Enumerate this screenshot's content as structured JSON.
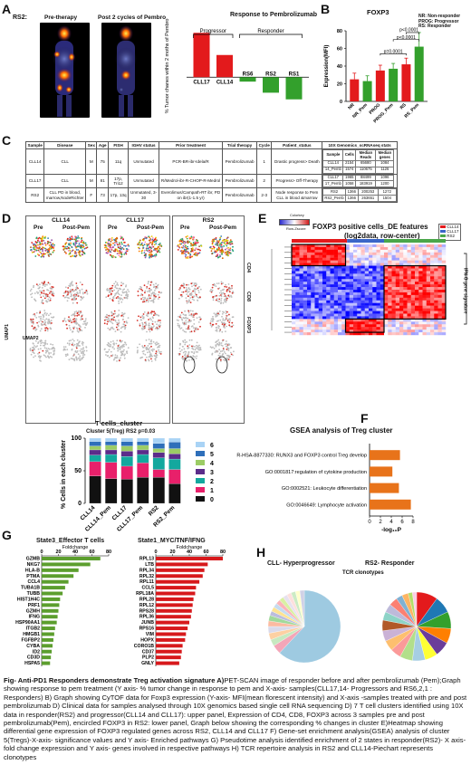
{
  "panel_labels": {
    "A": "A",
    "B": "B",
    "C": "C",
    "D": "D",
    "E": "E",
    "F": "F",
    "G": "G",
    "H": "H"
  },
  "panelA": {
    "patient": "RS2:",
    "pre": "Pre-therapy",
    "post": "Post 2 cycles of Pembro",
    "chart_title": "Response to Pembrolizumab",
    "progressor": "Progressor",
    "responder": "Responder",
    "ylabel": "% Tumor chanes within 2 moths of Pembro"
  },
  "panelB": {
    "title": "FOXP3",
    "ylabel": "Expression(MFI)",
    "legend": [
      "NR: Non-responder",
      "PROG: Progressor",
      "RS: Responder"
    ],
    "pval1": "p=0.0001",
    "pval2": "p<0.0001",
    "pval3": "p<0.0001"
  },
  "panelC": {
    "headers": [
      "Sample",
      "Disease",
      "Sex",
      "Age",
      "FISH",
      "IGHV status",
      "Prior treatment",
      "Trial therapy",
      "Cycle",
      "Patient_status",
      "10X Genomics_scRNAseq stats"
    ],
    "subheaders": [
      "Sample",
      "Cells",
      "Median Reads",
      "Median genes"
    ],
    "rows": [
      {
        "sample": "CLL14",
        "disease": "CLL",
        "sex": "M",
        "age": "75",
        "fish": "11q",
        "ighv": "Unmutated",
        "prior": "PCR-BR-ibr-Idela/R",
        "trial": "Pembrolizumab",
        "cycle": "1",
        "status": "Drastic progress> Death",
        "stats": [
          [
            "CLL14",
            "2154",
            "65680",
            "1084"
          ],
          [
            "14_Pemb",
            "1574",
            "110675",
            "1126"
          ]
        ]
      },
      {
        "sample": "CLL17",
        "disease": "CLL",
        "sex": "M",
        "age": "81",
        "fish": "17p, Tri12",
        "ighv": "Unmutated",
        "prior": "R/Medrol-ibr-R-CHOP-R-Medrol",
        "trial": "Pembrolizumab",
        "cycle": "2",
        "status": "Progress> Off-Therapy",
        "stats": [
          [
            "CLL17",
            "1965",
            "88499",
            "1096"
          ],
          [
            "17_Pemb",
            "1058",
            "183919",
            "1200"
          ]
        ]
      },
      {
        "sample": "RS2",
        "disease": "CLL PD in blood, marrow,NodeRichter",
        "sex": "F",
        "age": "73",
        "fish": "17p, 13q",
        "ighv": "Unmutated, 3-30",
        "prior": "Everolimus/Campath-RT ibr, PD on ibr(1-1.5 yr)",
        "trial": "Pembrolizumab",
        "cycle": "2-3",
        "status": "Node response to Pem CLL in blood &marrow",
        "stats": [
          [
            "RS2",
            "1366",
            "200253",
            "1272"
          ],
          [
            "RS2_Pemb",
            "1366",
            "263651",
            "1504"
          ]
        ]
      }
    ]
  },
  "panelD": {
    "cols": [
      {
        "title": "CLL14",
        "pre": "Pre",
        "post": "Post-Pem"
      },
      {
        "title": "CLL17",
        "pre": "Pre",
        "post": "Post-Pem"
      },
      {
        "title": "RS2",
        "pre": "Pre",
        "post": "Post-Pem"
      }
    ],
    "row_labels": [
      "CD4",
      "CD8",
      "FOXP3"
    ],
    "umap1": "UMAP1",
    "umap2": "UMAP2"
  },
  "panelE": {
    "title": "FOXP3 positive cells_DE features",
    "subtitle": "(log2data, row-center)",
    "colorkey": "Colorkey",
    "zscore": "Row-Zscore",
    "legend": [
      "CLL14",
      "CLL17",
      "RS2"
    ],
    "sidelabel": "IFN-G gene signature"
  },
  "panelTcells": {
    "title": "T cells_cluster",
    "subtitle": "Cluster 5(Treg) RS2 p=0.03",
    "ylabel": "% Cells in each cluster"
  },
  "panelF": {
    "title": "GSEA analysis of Treg cluster",
    "xlabel": "-log₁₀P"
  },
  "panelG": {
    "left_title": "State3_Effector T cells",
    "right_title": "State1_MYC/TNF/IFNG",
    "fc_label": "Foldchange"
  },
  "panelH": {
    "left_title": "CLL- Hyperprogressor",
    "right_title": "RS2- Responder",
    "tcr": "TCR clonotypes"
  },
  "caption": {
    "lead": "Fig- Anti-PD1 Responders demonstrate Treg activation signature A)",
    "body": "PET-SCAN image of responder before and after pembrolizumab (Pem);Graph showing response to pem treatment (Y axis- % tumor change in response to pem and X-axis- samples(CLL17,14- Progressors and RS6,2,1 : Responders) B) Graph showing CyTOF data for Foxp3 expression (Y-axis- MFI(mean florescent intensity) and X-axis -samples  treated with pre and post pembrolizumab D) Clinical data  for samples analysed through 10X genomics based single cell RNA sequencing D) 7 T cell clusters identified using 10X data in responder(RS2) and progressor(CLL14 and CLL17): upper panel, Expression of CD4, CD8, FOXP3 across 3 samples pre and post pembrolizumab(Pem), encircled FOXP3 in RS2: lower panel, Graph below showing the corresponding % changes in cluster  E)Heatmap showing differential gene expression of FOXP3 regulated genes across RS2, CLL14 and CLL17 F) Gene-set enrichment analysis(GSEA) analysis of cluster 5(Tregs)-X-axis- significance values and Y axis- Enriched pathways G) Pseudotime analysis identified enrichment of 2 states in responder(RS2)- X axis- fold change expression and Y axis- genes involved in respective pathways H) TCR repertoire analysis in RS2 and CLL14-Piechart represents clonotypes"
  },
  "chart_data": [
    {
      "type": "bar",
      "id": "A",
      "title": "Response to Pembrolizumab",
      "ylabel": "% Tumor chanes within 2 moths of Pembro",
      "categories": [
        "CLL17",
        "CLL14",
        "RS6",
        "RS2",
        "RS1"
      ],
      "values": [
        200,
        100,
        -20,
        -70,
        -100
      ],
      "colors": [
        "#e31a1c",
        "#e31a1c",
        "#33a02c",
        "#33a02c",
        "#33a02c"
      ],
      "ylim": [
        -150,
        250
      ]
    },
    {
      "type": "bar",
      "id": "B",
      "title": "FOXP3",
      "ylabel": "Expression(MFI)",
      "categories": [
        "NR",
        "NR_Pem",
        "PROG",
        "PROG_Pem",
        "RS",
        "RS_Pem"
      ],
      "values": [
        25,
        23,
        35,
        37,
        42,
        62
      ],
      "errors": [
        7,
        6,
        6,
        6,
        7,
        16
      ],
      "colors": [
        "#e31a1c",
        "#33a02c",
        "#e31a1c",
        "#33a02c",
        "#e31a1c",
        "#33a02c"
      ],
      "ylim": [
        0,
        80
      ],
      "yticks": [
        0,
        20,
        40,
        60,
        80
      ]
    },
    {
      "type": "bar",
      "id": "Tcells",
      "title": "T cells_cluster",
      "subtitle": "Cluster 5(Treg) RS2 p=0.03",
      "ylabel": "% Cells in each cluster",
      "categories": [
        "CLL14",
        "CLL14_Pem",
        "CLL17",
        "CLL17_Pem",
        "RS2",
        "RS2_Pem"
      ],
      "stacked": true,
      "series": [
        {
          "name": "0",
          "color": "#111111",
          "values": [
            42,
            38,
            37,
            40,
            40,
            30
          ]
        },
        {
          "name": "1",
          "color": "#e8206a",
          "values": [
            22,
            25,
            20,
            22,
            12,
            22
          ]
        },
        {
          "name": "2",
          "color": "#13a89e",
          "values": [
            10,
            12,
            15,
            13,
            18,
            16
          ]
        },
        {
          "name": "3",
          "color": "#5b2c8a",
          "values": [
            8,
            7,
            8,
            7,
            8,
            8
          ]
        },
        {
          "name": "4",
          "color": "#9ccc65",
          "values": [
            6,
            7,
            8,
            7,
            6,
            8
          ]
        },
        {
          "name": "5",
          "color": "#2e6fba",
          "values": [
            7,
            6,
            7,
            6,
            8,
            10
          ]
        },
        {
          "name": "6",
          "color": "#a9d3f5",
          "values": [
            5,
            5,
            5,
            5,
            8,
            6
          ]
        }
      ],
      "ylim": [
        0,
        100
      ],
      "yticks": [
        0,
        50,
        100
      ]
    },
    {
      "type": "bar",
      "id": "F",
      "orientation": "horizontal",
      "title": "GSEA analysis of Treg cluster",
      "xlabel": "-log₁₀P",
      "categories": [
        "R-HSA-8877330: RUNX3 and FOXP3 control Treg develop",
        "GO:0001817:regulation of cytokine production",
        "GO:0002521: Leukocyte differentiation",
        "GO:0046649: Lymphocyte activation"
      ],
      "values": [
        5.6,
        4.2,
        5.4,
        7.6
      ],
      "color": "#e8731a",
      "xlim": [
        0,
        8
      ],
      "xticks": [
        0,
        2,
        4,
        6,
        8
      ]
    },
    {
      "type": "bar",
      "id": "G_left",
      "orientation": "horizontal",
      "title": "State3_Effector T cells",
      "xlabel": "Foldchange",
      "categories": [
        "GZMB",
        "NKG7",
        "HLA-B",
        "PTMA",
        "CCL4",
        "TUBA1B",
        "TUBB",
        "HIST1H4C",
        "PRF1",
        "GZMH",
        "IFNG",
        "HSP90AA1",
        "ITGB2",
        "HMGB1",
        "FGFBP2",
        "CYBA",
        "ID2",
        "CD3D",
        "HSPA5"
      ],
      "values": [
        70,
        58,
        44,
        38,
        32,
        28,
        25,
        22,
        21,
        20,
        19,
        18,
        16,
        15,
        14,
        13,
        12,
        11,
        10
      ],
      "color": "#5c9e2e",
      "xlim": [
        0,
        80
      ],
      "xticks": [
        0,
        20,
        40,
        60,
        80
      ]
    },
    {
      "type": "bar",
      "id": "G_right",
      "orientation": "horizontal",
      "title": "State1_MYC/TNF/IFNG",
      "xlabel": "Foldchange",
      "categories": [
        "RPL13",
        "LTB",
        "RPL34",
        "RPL32",
        "RPL11",
        "CCL5",
        "RPL18A",
        "RPL28",
        "RPL12",
        "RPS28",
        "RPL36",
        "JUNB",
        "RPS16",
        "VIM",
        "HOPX",
        "CORO1B",
        "CD37",
        "PLP2",
        "GNLY"
      ],
      "values": [
        80,
        62,
        58,
        56,
        52,
        48,
        47,
        45,
        44,
        43,
        42,
        40,
        38,
        36,
        35,
        32,
        31,
        30,
        28
      ],
      "color": "#d7191c",
      "xlim": [
        0,
        80
      ],
      "xticks": [
        0,
        20,
        40,
        60,
        80
      ]
    },
    {
      "type": "pie",
      "id": "H_left",
      "title": "CLL- Hyperprogressor",
      "values": [
        62,
        4,
        3,
        3,
        3,
        2.5,
        2.5,
        2,
        2,
        2,
        2,
        2,
        2,
        2,
        2,
        2,
        2
      ],
      "colors": [
        "#9ecae1",
        "#f4a6b8",
        "#c7e9c0",
        "#fdd0a2",
        "#dadaeb",
        "#fcbba1",
        "#a1d99b",
        "#bcbddc",
        "#fee391",
        "#c6dbef",
        "#fbb4b9",
        "#d9f0a3",
        "#e7e1ef",
        "#fde0dd",
        "#ccebc5",
        "#ffffcc",
        "#d0d1e6"
      ]
    },
    {
      "type": "pie",
      "id": "H_right",
      "values": [
        10,
        8,
        8,
        7,
        7,
        6,
        6,
        6,
        5,
        5,
        5,
        5,
        4,
        4,
        4,
        3,
        3,
        2,
        2
      ],
      "colors": [
        "#e31a1c",
        "#1f78b4",
        "#33a02c",
        "#ff7f00",
        "#6a3d9a",
        "#ffff33",
        "#a6cee3",
        "#b2df8a",
        "#fb9a99",
        "#fdbf6f",
        "#cab2d6",
        "#b15928",
        "#8dd3c7",
        "#bebada",
        "#fb8072",
        "#80b1d3",
        "#fdb462",
        "#b3de69",
        "#fccde5"
      ]
    }
  ]
}
